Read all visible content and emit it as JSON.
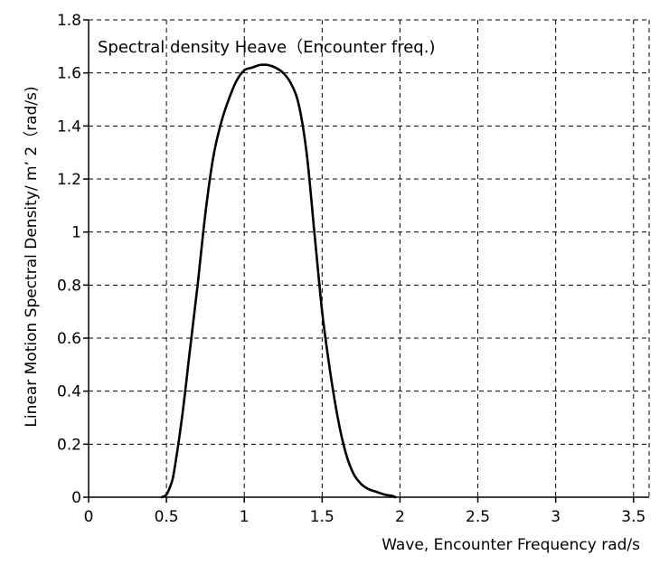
{
  "chart_data": {
    "type": "line",
    "title": "Spectral density Heave（Encounter freq.)",
    "xlabel": "Wave, Encounter Frequency rad/s",
    "ylabel": "Linear Motion Spectral Density/ m’ 2（rad/s)",
    "xlim": [
      0,
      3.6
    ],
    "ylim": [
      0,
      1.8
    ],
    "x_ticks": [
      0,
      0.5,
      1,
      1.5,
      2,
      2.5,
      3,
      3.5
    ],
    "x_tick_labels": [
      "0",
      "0.5",
      "1",
      "1.5",
      "2",
      "2.5",
      "3",
      "3.5"
    ],
    "y_ticks": [
      0,
      0.2,
      0.4,
      0.6,
      0.8,
      1,
      1.2,
      1.4,
      1.6,
      1.8
    ],
    "y_tick_labels": [
      "0",
      "0.2",
      "0.4",
      "0.6",
      "0.8",
      "1",
      "1.2",
      "1.4",
      "1.6",
      "1.8"
    ],
    "grid": true,
    "legend": "none",
    "series": [
      {
        "x": [
          0.47,
          0.5,
          0.53,
          0.55,
          0.6,
          0.65,
          0.7,
          0.75,
          0.8,
          0.85,
          0.9,
          0.95,
          1.0,
          1.05,
          1.1,
          1.15,
          1.2,
          1.25,
          1.3,
          1.35,
          1.4,
          1.45,
          1.5,
          1.55,
          1.6,
          1.65,
          1.7,
          1.75,
          1.8,
          1.85,
          1.9,
          1.95,
          1.97
        ],
        "y": [
          0.0,
          0.01,
          0.05,
          0.1,
          0.3,
          0.55,
          0.8,
          1.07,
          1.28,
          1.41,
          1.5,
          1.57,
          1.61,
          1.62,
          1.63,
          1.63,
          1.62,
          1.6,
          1.56,
          1.48,
          1.3,
          1.0,
          0.7,
          0.48,
          0.3,
          0.17,
          0.09,
          0.05,
          0.03,
          0.02,
          0.01,
          0.005,
          0.0
        ],
        "color": "#000000"
      }
    ]
  }
}
